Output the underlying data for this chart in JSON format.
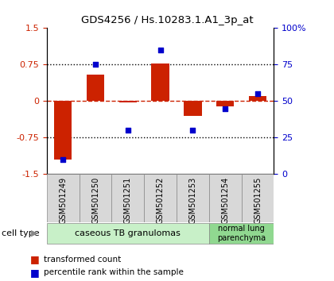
{
  "title": "GDS4256 / Hs.10283.1.A1_3p_at",
  "samples": [
    "GSM501249",
    "GSM501250",
    "GSM501251",
    "GSM501252",
    "GSM501253",
    "GSM501254",
    "GSM501255"
  ],
  "red_values": [
    -1.2,
    0.55,
    -0.02,
    0.78,
    -0.3,
    -0.1,
    0.1
  ],
  "blue_values": [
    10,
    75,
    30,
    85,
    30,
    45,
    55
  ],
  "ylim_left": [
    -1.5,
    1.5
  ],
  "ylim_right": [
    0,
    100
  ],
  "yticks_left": [
    -1.5,
    -0.75,
    0,
    0.75,
    1.5
  ],
  "yticks_right": [
    0,
    25,
    50,
    75,
    100
  ],
  "yticklabels_right": [
    "0",
    "25",
    "50",
    "75",
    "100%"
  ],
  "group1_indices": [
    0,
    1,
    2,
    3,
    4
  ],
  "group2_indices": [
    5,
    6
  ],
  "group1_label": "caseous TB granulomas",
  "group2_label": "normal lung\nparenchyma",
  "group1_color": "#c8f0c8",
  "group2_color": "#90d890",
  "cell_type_label": "cell type",
  "red_color": "#cc2200",
  "blue_color": "#0000cc",
  "sample_box_color": "#d8d8d8",
  "background_color": "#ffffff"
}
